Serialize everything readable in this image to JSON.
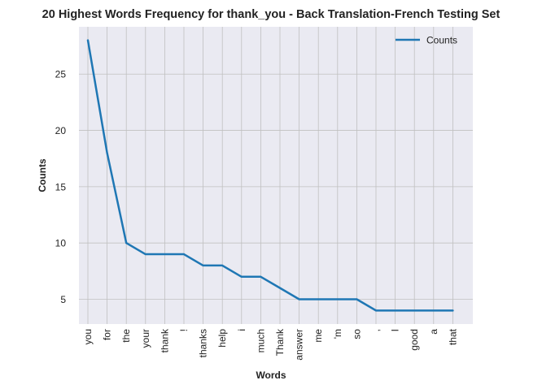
{
  "chart_data": {
    "type": "line",
    "title": "20 Highest Words Frequency for thank_you - Back Translation-French Testing Set",
    "xlabel": "Words",
    "ylabel": "Counts",
    "categories": [
      "you",
      "for",
      "the",
      "your",
      "thank",
      "!",
      "thanks",
      "help",
      "i",
      "much",
      "Thank",
      "answer",
      "me",
      "'m",
      "so",
      ",",
      "I",
      "good",
      "a",
      "that"
    ],
    "series": [
      {
        "name": "Counts",
        "values": [
          28,
          18,
          10,
          9,
          9,
          9,
          8,
          8,
          7,
          7,
          6,
          5,
          5,
          5,
          5,
          4,
          4,
          4,
          4,
          4
        ],
        "color": "#1f77b4"
      }
    ],
    "yticks": [
      5,
      10,
      15,
      20,
      25
    ],
    "ylim": [
      2.8,
      29.2
    ],
    "grid": true,
    "legend_position": "top-right",
    "colors": {
      "background": "#eaeaf2",
      "grid": "#c0c0c0",
      "line": "#1f77b4"
    }
  }
}
